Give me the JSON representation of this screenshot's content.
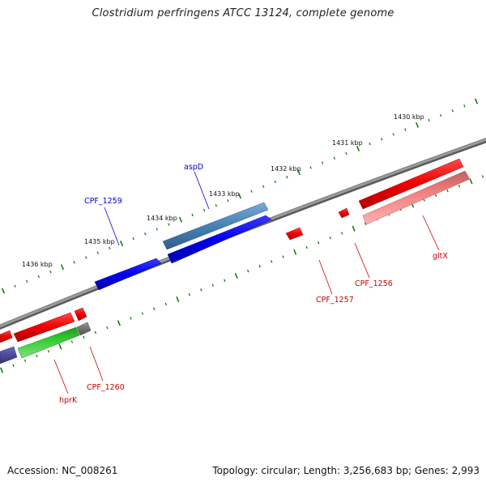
{
  "title": "Clostridium perfringens ATCC 13124, complete genome",
  "footer": {
    "accession": "Accession: NC_008261",
    "summary": "Topology: circular; Length: 3,256,683 bp; Genes: 2,993"
  },
  "scale_labels": [
    "1430 kbp",
    "1431 kbp",
    "1432 kbp",
    "1433 kbp",
    "1434 kbp",
    "1435 kbp",
    "1436 kbp"
  ],
  "genes": [
    {
      "label": "aspD",
      "strand": "forward",
      "color": "#0000cc"
    },
    {
      "label": "CPF_1259",
      "strand": "forward",
      "color": "#0000cc"
    },
    {
      "label": "CPF_1256",
      "strand": "reverse",
      "color": "#cc0000"
    },
    {
      "label": "CPF_1257",
      "strand": "reverse",
      "color": "#cc0000"
    },
    {
      "label": "gltX",
      "strand": "reverse",
      "color": "#cc0000"
    },
    {
      "label": "CPF_1260",
      "strand": "reverse",
      "color": "#cc0000"
    },
    {
      "label": "hprK",
      "strand": "reverse",
      "color": "#cc0000"
    }
  ],
  "colors": {
    "backbone": "#808080",
    "tick": "#1a7a1a",
    "forward_gene": "#0000ee",
    "steelblue_gene": "#4682b4",
    "reverse_gene": "#ee0000",
    "pink_gene": "#f08080",
    "green_gene": "#33cc33",
    "gray_gene": "#707070",
    "purple_gene": "#4b4b9b"
  }
}
